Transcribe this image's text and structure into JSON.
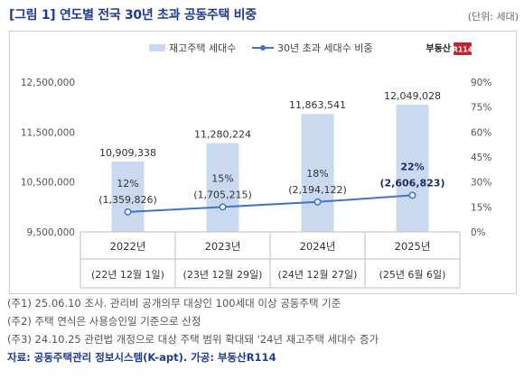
{
  "header": {
    "title": "[그림 1] 연도별 전국 30년 초과 공동주택 비중",
    "unit": "(단위: 세대)"
  },
  "watermark": {
    "brand": "부동산",
    "badge": "R114"
  },
  "colors": {
    "bar": "#c9d9ef",
    "line": "#4472c4",
    "title": "#1f3b8a"
  },
  "chart_data": {
    "type": "bar",
    "categories": [
      "2022년",
      "2023년",
      "2024년",
      "2025년"
    ],
    "dates": [
      "(22년 12월 1일)",
      "(23년 12월 29일)",
      "(24년 12월 27일)",
      "(25년 6월 6일)"
    ],
    "series": [
      {
        "name": "재고주택 세대수",
        "type": "bar",
        "axis": "left",
        "values": [
          10909338,
          11280224,
          11863541,
          12049028
        ],
        "labels": [
          "10,909,338",
          "11,280,224",
          "11,863,541",
          "12,049,028"
        ]
      },
      {
        "name": "30년 초과 세대수 비중",
        "type": "line",
        "axis": "right",
        "values": [
          12,
          15,
          18,
          22
        ],
        "labels": [
          "12%",
          "15%",
          "18%",
          "22%"
        ],
        "sub_labels": [
          "(1,359,826)",
          "(1,705,215)",
          "(2,194,122)",
          "(2,606,823)"
        ]
      }
    ],
    "y_left": {
      "ylim": [
        9500000,
        12500000
      ],
      "ticks": [
        9500000,
        10500000,
        11500000,
        12500000
      ],
      "tick_labels": [
        "9,500,000",
        "10,500,000",
        "11,500,000",
        "12,500,000"
      ]
    },
    "y_right": {
      "ylim": [
        0,
        90
      ],
      "ticks": [
        0,
        15,
        30,
        45,
        60,
        75,
        90
      ],
      "tick_labels": [
        "0%",
        "15%",
        "30%",
        "45%",
        "60%",
        "75%",
        "90%"
      ]
    },
    "legend": {
      "position": "top"
    },
    "grid": false
  },
  "notes": [
    "(주1) 25.06.10 조사. 관리비 공개의무 대상인 100세대 이상 공동주택 기준",
    "(주2) 주택 연식은 사용승인일 기준으로 산정",
    "(주3) 24.10.25 관련법 개정으로 대상 주택 범위 확대돼 '24년 재고주택 세대수 증가"
  ],
  "source": "자료: 공동주택관리 정보시스템(K-apt). 가공: 부동산R114"
}
